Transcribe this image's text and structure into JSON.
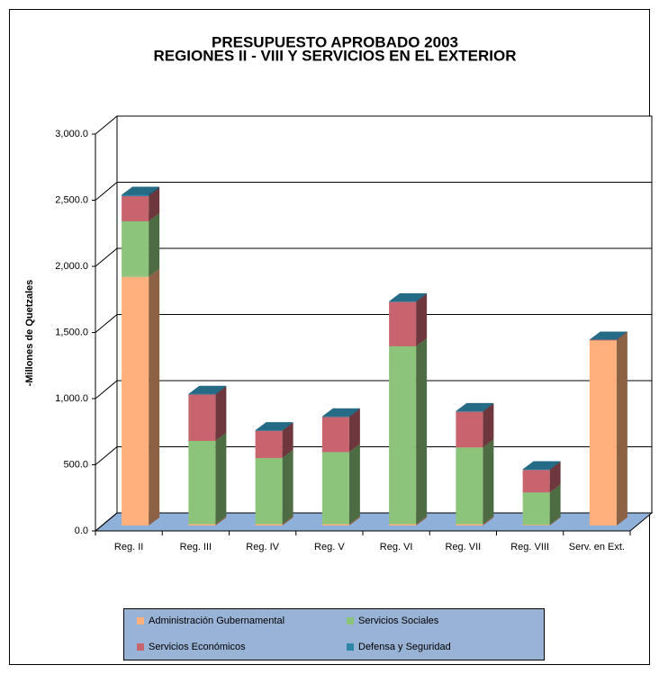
{
  "chart_data": {
    "type": "bar3d_stacked",
    "title": [
      "PRESUPUESTO APROBADO 2003",
      "REGIONES II - VIII Y SERVICIOS EN EL EXTERIOR"
    ],
    "y_label": "-Millones de Quetzales",
    "categories": [
      "Reg. II",
      "Reg. III",
      "Reg. IV",
      "Reg. V",
      "Reg. VI",
      "Reg. VII",
      "Reg. VIII",
      "Serv. en Ext."
    ],
    "series": [
      {
        "name": "Administración Gubernamental",
        "color": "#ffb07c",
        "values": [
          1880,
          10,
          10,
          10,
          10,
          10,
          5,
          1400
        ]
      },
      {
        "name": "Servicios  Sociales",
        "color": "#8cc47c",
        "values": [
          420,
          630,
          500,
          545,
          1345,
          580,
          245,
          0
        ]
      },
      {
        "name": "Servicios Económicos",
        "color": "#c8646e",
        "values": [
          190,
          350,
          205,
          265,
          335,
          270,
          170,
          5
        ]
      },
      {
        "name": "Defensa y Seguridad",
        "color": "#2e86a6",
        "values": [
          10,
          5,
          5,
          5,
          5,
          5,
          5,
          0
        ]
      }
    ],
    "ylim": [
      0,
      3000
    ],
    "yticks": [
      {
        "value": 0,
        "label": "0.0"
      },
      {
        "value": 500,
        "label": "500.0"
      },
      {
        "value": 1000,
        "label": "1,000.0"
      },
      {
        "value": 1500,
        "label": "1,500.0"
      },
      {
        "value": 2000,
        "label": "2,000.0"
      },
      {
        "value": 2500,
        "label": "2,500.0"
      },
      {
        "value": 3000,
        "label": "3,000.0"
      }
    ],
    "grid": true
  }
}
